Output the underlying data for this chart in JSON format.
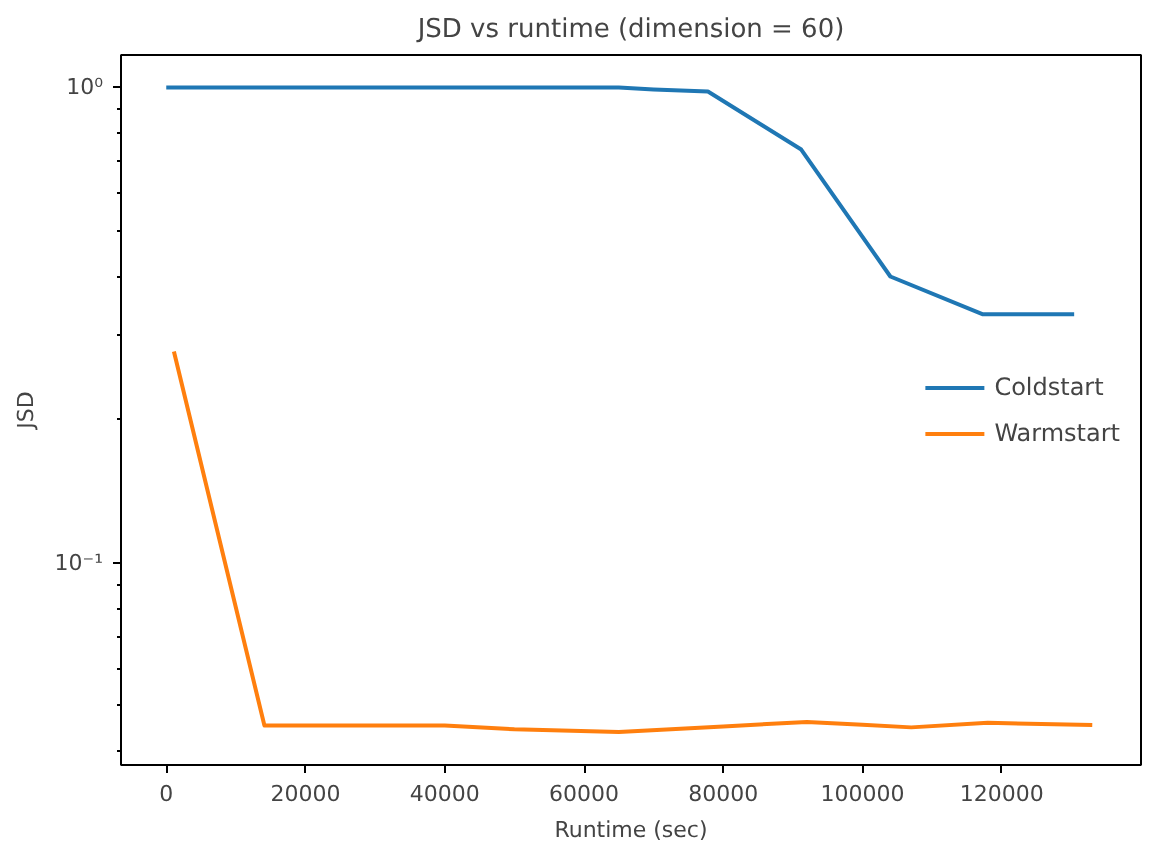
{
  "chart_data": {
    "type": "line",
    "title": "JSD vs runtime (dimension = 60)",
    "xlabel": "Runtime (sec)",
    "ylabel": "JSD",
    "log": "y",
    "grid": false,
    "legend": "right",
    "xlim": [
      -6500,
      140000
    ],
    "ylim": [
      0.0375,
      1.17
    ],
    "xticks": [
      0,
      20000,
      40000,
      60000,
      80000,
      100000,
      120000
    ],
    "yticks": [
      {
        "value": 1,
        "label": "10⁰"
      },
      {
        "value": 0.1,
        "label": "10⁻¹"
      },
      {
        "value": 0.04,
        "label": null
      },
      {
        "value": 0.05,
        "label": null
      },
      {
        "value": 0.06,
        "label": null
      },
      {
        "value": 0.07,
        "label": null
      },
      {
        "value": 0.08,
        "label": null
      },
      {
        "value": 0.09,
        "label": null
      },
      {
        "value": 0.2,
        "label": null
      },
      {
        "value": 0.3,
        "label": null
      },
      {
        "value": 0.4,
        "label": null
      },
      {
        "value": 0.5,
        "label": null
      },
      {
        "value": 0.6,
        "label": null
      },
      {
        "value": 0.7,
        "label": null
      },
      {
        "value": 0.8,
        "label": null
      },
      {
        "value": 0.9,
        "label": null
      }
    ],
    "series": [
      {
        "name": "Coldstart",
        "color": "#1f77b4",
        "x": [
          0,
          13000,
          26000,
          39000,
          52000,
          65000,
          70000,
          77800,
          91200,
          104000,
          117300,
          130400
        ],
        "values": [
          1.0,
          1.0,
          1.0,
          1.0,
          1.0,
          1.0,
          0.99,
          0.98,
          0.74,
          0.4,
          0.333,
          0.333
        ]
      },
      {
        "name": "Warmstart",
        "color": "#ff7f0e",
        "x": [
          1100,
          14100,
          27000,
          40000,
          50000,
          65000,
          80000,
          92000,
          100000,
          107000,
          118000,
          133000
        ],
        "values": [
          0.278,
          0.0454,
          0.0454,
          0.0454,
          0.0446,
          0.044,
          0.0452,
          0.0462,
          0.0456,
          0.045,
          0.046,
          0.0455
        ]
      }
    ]
  }
}
